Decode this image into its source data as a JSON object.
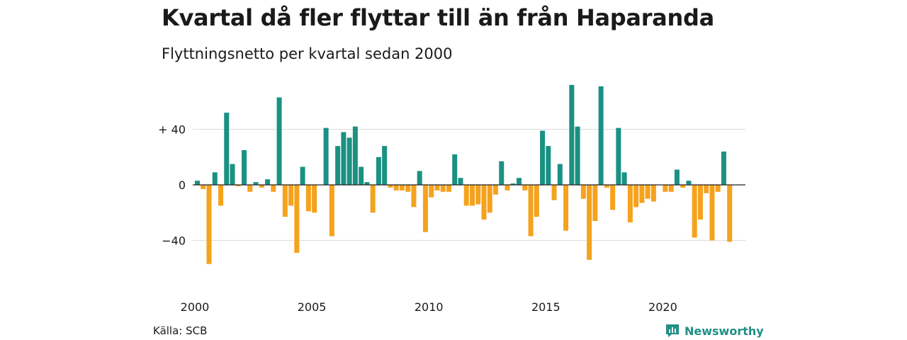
{
  "header": {
    "title": "Kvartal då fler flyttar till än från Haparanda",
    "subtitle": "Flyttningsnetto per kvartal sedan 2000"
  },
  "footer": {
    "source": "Källa: SCB",
    "brand": "Newsworthy",
    "brand_icon": "newsworthy-logo-icon"
  },
  "colors": {
    "positive": "#1a9183",
    "negative": "#f5a21d",
    "grid": "#d9d9d9",
    "zero_line": "#222222"
  },
  "chart_data": {
    "type": "bar",
    "title": "Kvartal då fler flyttar till än från Haparanda",
    "subtitle": "Flyttningsnetto per kvartal sedan 2000",
    "xlabel": "",
    "ylabel": "",
    "ylim": [
      -62,
      72
    ],
    "yticks": [
      {
        "value": 40,
        "label": "+ 40"
      },
      {
        "value": 0,
        "label": "0"
      },
      {
        "value": -40,
        "label": "−40"
      }
    ],
    "xticks": [
      {
        "year": 2000,
        "label": "2000"
      },
      {
        "year": 2005,
        "label": "2005"
      },
      {
        "year": 2010,
        "label": "2010"
      },
      {
        "year": 2015,
        "label": "2015"
      },
      {
        "year": 2020,
        "label": "2020"
      }
    ],
    "start_year": 2000,
    "grid": true,
    "values": [
      3,
      -3,
      -57,
      9,
      -15,
      52,
      15,
      -1,
      25,
      -5,
      2,
      -2,
      4,
      -5,
      63,
      -23,
      -15,
      -49,
      13,
      -19,
      -20,
      0,
      41,
      -37,
      28,
      38,
      34,
      42,
      13,
      2,
      -20,
      20,
      28,
      -2,
      -4,
      -4,
      -5,
      -16,
      10,
      -34,
      -9,
      -4,
      -5,
      -5,
      22,
      5,
      -15,
      -15,
      -14,
      -25,
      -20,
      -7,
      17,
      -4,
      1,
      5,
      -4,
      -37,
      -23,
      39,
      28,
      -11,
      15,
      -33,
      72,
      42,
      -10,
      -54,
      -26,
      71,
      -2,
      -18,
      41,
      9,
      -27,
      -16,
      -13,
      -10,
      -12,
      0,
      -5,
      -5,
      11,
      -2,
      3,
      -38,
      -25,
      -6,
      -40,
      -5,
      24,
      -41
    ]
  }
}
